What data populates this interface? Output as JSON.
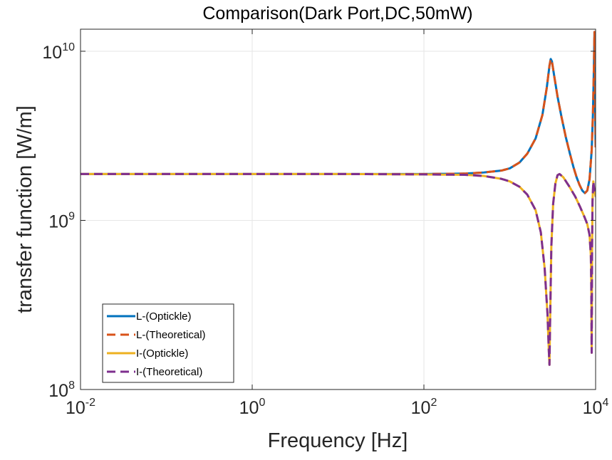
{
  "chart_data": {
    "type": "line",
    "title": "Comparison(Dark Port,DC,50mW)",
    "xlabel": "Frequency [Hz]",
    "ylabel": "transfer function [W/m]",
    "xscale": "log",
    "yscale": "log",
    "xlim": [
      0.01,
      10000
    ],
    "ylim": [
      100000000,
      13500000000
    ],
    "grid": true,
    "legend_position": "bottom-left",
    "x_ticks": [
      {
        "base": "10",
        "exp": "-2",
        "value": 0.01
      },
      {
        "base": "10",
        "exp": "0",
        "value": 1
      },
      {
        "base": "10",
        "exp": "2",
        "value": 100
      },
      {
        "base": "10",
        "exp": "4",
        "value": 10000
      }
    ],
    "y_ticks": [
      {
        "base": "10",
        "exp": "8",
        "value": 100000000
      },
      {
        "base": "10",
        "exp": "9",
        "value": 1000000000
      },
      {
        "base": "10",
        "exp": "10",
        "value": 10000000000
      }
    ],
    "series": [
      {
        "name": "L-(Optickle)",
        "color": "#0072BD",
        "dash": "solid",
        "x": [
          0.01,
          0.1,
          1,
          10,
          100,
          300,
          500,
          800,
          1000,
          1300,
          1600,
          2000,
          2400,
          2700,
          2900,
          3000,
          3100,
          3300,
          3600,
          4000,
          4500,
          5000,
          5500,
          6000,
          6500,
          7000,
          7500,
          8000,
          8500,
          9000,
          9300,
          9500,
          9700,
          9850,
          10000
        ],
        "y": [
          1880000000,
          1880000000,
          1880000000,
          1880000000,
          1880000000,
          1890000000,
          1920000000,
          1970000000,
          2030000000,
          2200000000,
          2480000000,
          3050000000,
          4200000000,
          6100000000,
          8200000000,
          9000000000,
          8700000000,
          7100000000,
          5400000000,
          4100000000,
          3100000000,
          2500000000,
          2080000000,
          1800000000,
          1620000000,
          1500000000,
          1450000000,
          1500000000,
          1750000000,
          2600000000,
          4200000000,
          7000000000,
          13000000000,
          6500000000,
          2700000000
        ]
      },
      {
        "name": "L-(Theoretical)",
        "color": "#D95319",
        "dash": "dashed",
        "x": [
          0.01,
          0.1,
          1,
          10,
          100,
          300,
          500,
          800,
          1000,
          1300,
          1600,
          2000,
          2400,
          2700,
          2900,
          3000,
          3100,
          3300,
          3600,
          4000,
          4500,
          5000,
          5500,
          6000,
          6500,
          7000,
          7500,
          8000,
          8500,
          9000,
          9300,
          9500,
          9700,
          9850,
          10000
        ],
        "y": [
          1880000000,
          1880000000,
          1880000000,
          1880000000,
          1880000000,
          1890000000,
          1920000000,
          1970000000,
          2030000000,
          2200000000,
          2480000000,
          3050000000,
          4200000000,
          6100000000,
          8200000000,
          9000000000,
          8700000000,
          7100000000,
          5400000000,
          4100000000,
          3100000000,
          2500000000,
          2080000000,
          1800000000,
          1620000000,
          1500000000,
          1450000000,
          1500000000,
          1750000000,
          2600000000,
          4200000000,
          7000000000,
          13000000000,
          6500000000,
          2700000000
        ]
      },
      {
        "name": "I-(Optickle)",
        "color": "#EDB120",
        "dash": "solid",
        "x": [
          0.01,
          0.1,
          1,
          10,
          100,
          300,
          500,
          800,
          1000,
          1300,
          1600,
          2000,
          2300,
          2550,
          2750,
          2850,
          2900,
          2950,
          3050,
          3200,
          3400,
          3600,
          3800,
          4200,
          5000,
          5800,
          6600,
          7400,
          8000,
          8500,
          8800,
          8900,
          8950,
          9000,
          9050,
          9100,
          9200,
          9400,
          9600,
          10000
        ],
        "y": [
          1880000000,
          1880000000,
          1880000000,
          1880000000,
          1870000000,
          1860000000,
          1830000000,
          1760000000,
          1700000000,
          1580000000,
          1420000000,
          1150000000,
          850000000,
          520000000,
          280000000,
          170000000,
          140000000,
          250000000,
          700000000,
          1250000000,
          1650000000,
          1850000000,
          1880000000,
          1800000000,
          1570000000,
          1380000000,
          1200000000,
          1050000000,
          950000000,
          820000000,
          620000000,
          420000000,
          250000000,
          165000000,
          300000000,
          700000000,
          1300000000,
          1700000000,
          1550000000,
          1380000000
        ]
      },
      {
        "name": "I-(Theoretical)",
        "color": "#7E2F8E",
        "dash": "dashed",
        "x": [
          0.01,
          0.1,
          1,
          10,
          100,
          300,
          500,
          800,
          1000,
          1300,
          1600,
          2000,
          2300,
          2550,
          2750,
          2850,
          2900,
          2950,
          3050,
          3200,
          3400,
          3600,
          3800,
          4200,
          5000,
          5800,
          6600,
          7400,
          8000,
          8500,
          8800,
          8900,
          8950,
          9000,
          9050,
          9100,
          9200,
          9400,
          9600,
          10000
        ],
        "y": [
          1880000000,
          1880000000,
          1880000000,
          1880000000,
          1870000000,
          1860000000,
          1830000000,
          1760000000,
          1700000000,
          1580000000,
          1420000000,
          1150000000,
          850000000,
          520000000,
          280000000,
          170000000,
          140000000,
          250000000,
          700000000,
          1250000000,
          1650000000,
          1850000000,
          1880000000,
          1800000000,
          1570000000,
          1380000000,
          1200000000,
          1050000000,
          950000000,
          820000000,
          620000000,
          420000000,
          250000000,
          165000000,
          300000000,
          700000000,
          1300000000,
          1700000000,
          1550000000,
          1380000000
        ]
      }
    ]
  }
}
